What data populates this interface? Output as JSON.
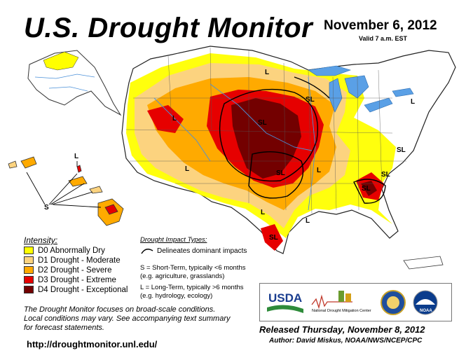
{
  "header": {
    "title": "U.S. Drought Monitor",
    "date": "November 6, 2012",
    "valid": "Valid 7 a.m. EST"
  },
  "legend": {
    "title": "Intensity:",
    "items": [
      {
        "label": "D0 Abnormally Dry",
        "color": "#FFFF00"
      },
      {
        "label": "D1 Drought - Moderate",
        "color": "#FCD37F"
      },
      {
        "label": "D2 Drought - Severe",
        "color": "#FFAA00"
      },
      {
        "label": "D3 Drought - Extreme",
        "color": "#E60000"
      },
      {
        "label": "D4 Drought - Exceptional",
        "color": "#730000"
      }
    ]
  },
  "impact": {
    "title": "Drought Impact Types:",
    "line_label": "Delineates dominant impacts",
    "short_1": "S = Short-Term, typically <6 months",
    "short_2": "(e.g. agriculture, grasslands)",
    "long_1": "L = Long-Term, typically >6 months",
    "long_2": "(e.g. hydrology, ecology)"
  },
  "map_labels": {
    "s": "S",
    "l": "L",
    "sl": "SL"
  },
  "note": {
    "line1": "The Drought Monitor focuses on broad-scale conditions.",
    "line2": "Local conditions may vary. See accompanying text summary",
    "line3": "for forecast statements."
  },
  "footer": {
    "url": "http://droughtmonitor.unl.edu/",
    "released": "Released Thursday, November 8, 2012",
    "author": "Author: David Miskus, NOAA/NWS/NCEP/CPC"
  },
  "logos": {
    "usda": "USDA",
    "ndmc_1": "National",
    "ndmc_2": "Drought Mitigation Center",
    "noaa": "NOAA"
  },
  "colors": {
    "water": "#5AA0E6",
    "state_line": "#555555",
    "river": "#4A90D9"
  }
}
